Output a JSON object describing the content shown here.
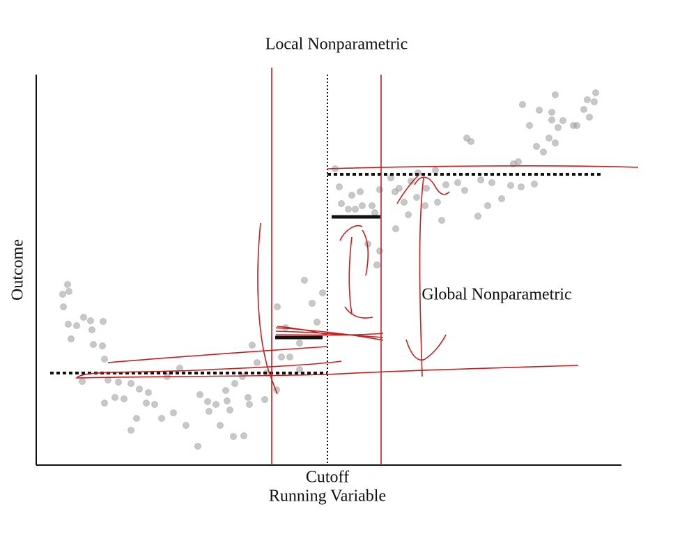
{
  "title": "Local Nonparametric",
  "annotation": "Global Nonparametric",
  "y_label": "Outcome",
  "cutoff_label": "Cutoff",
  "x_label": "Running Variable"
}
